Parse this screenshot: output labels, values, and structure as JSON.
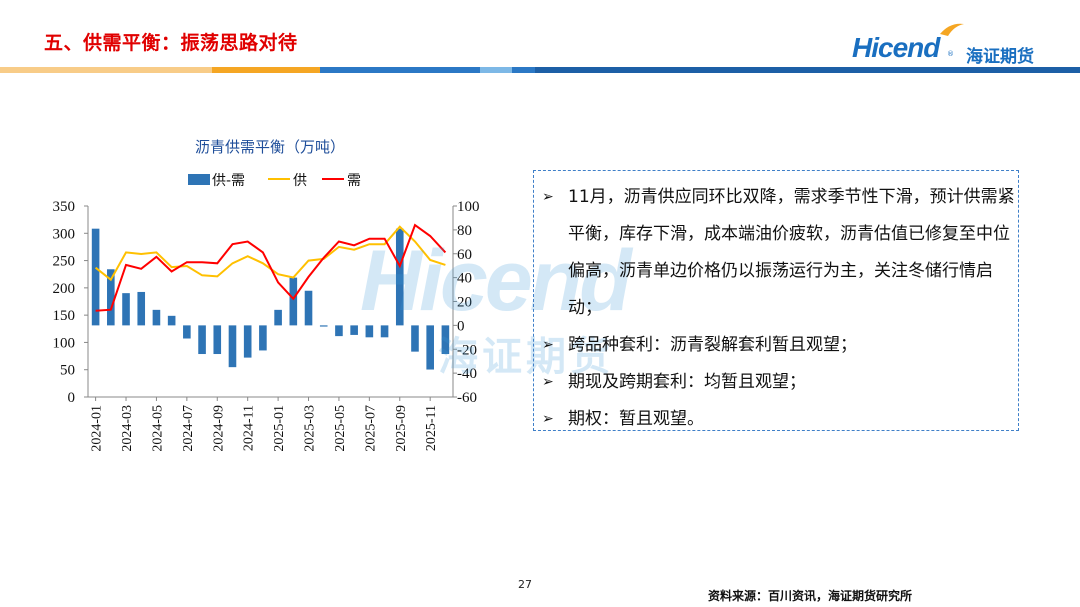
{
  "header": {
    "title": "五、供需平衡：振荡思路对待",
    "logo_text": "Hicend",
    "logo_reg": "®",
    "logo_cn": "海证期货"
  },
  "watermark": {
    "text_en": "Hicend",
    "text_cn": "海证期货"
  },
  "chart_data": {
    "type": "bar+line",
    "title": "沥青供需平衡（万吨）",
    "categories": [
      "2024-01",
      "2024-02",
      "2024-03",
      "2024-04",
      "2024-05",
      "2024-06",
      "2024-07",
      "2024-08",
      "2024-09",
      "2024-10",
      "2024-11",
      "2024-12",
      "2025-01",
      "2025-02",
      "2025-03",
      "2025-04",
      "2025-05",
      "2025-06",
      "2025-07",
      "2025-08",
      "2025-09",
      "2025-10",
      "2025-11",
      "2025-12"
    ],
    "tick_labels": [
      "2024-01",
      "2024-03",
      "2024-05",
      "2024-07",
      "2024-09",
      "2024-11",
      "2025-01",
      "2025-03",
      "2025-05",
      "2025-07",
      "2025-09",
      "2025-11"
    ],
    "left_axis": {
      "min": 0,
      "max": 350,
      "ticks": [
        "0",
        "50",
        "100",
        "150",
        "200",
        "250",
        "300",
        "350"
      ]
    },
    "right_axis": {
      "min": -60,
      "max": 100,
      "ticks": [
        "-60",
        "-40",
        "-20",
        "0",
        "20",
        "40",
        "60",
        "80",
        "100"
      ]
    },
    "legend": {
      "position": "top",
      "labels": [
        "供-需",
        "供",
        "需"
      ]
    },
    "series": [
      {
        "name": "供-需",
        "type": "bar",
        "axis": "right",
        "color": "#2e74b5",
        "values": [
          81,
          47,
          27,
          28,
          13,
          8,
          -11,
          -24,
          -24,
          -35,
          -27,
          -21,
          13,
          40,
          29,
          -1,
          -9,
          -8,
          -10,
          -10,
          81,
          -22,
          -37,
          -24
        ]
      },
      {
        "name": "供",
        "type": "line",
        "axis": "left",
        "color": "#ffc000",
        "values": [
          237,
          215,
          265,
          262,
          265,
          238,
          240,
          223,
          221,
          245,
          258,
          245,
          225,
          219,
          250,
          253,
          275,
          270,
          280,
          280,
          312,
          285,
          251,
          242
        ]
      },
      {
        "name": "需",
        "type": "line",
        "axis": "left",
        "color": "#ff0000",
        "values": [
          158,
          160,
          242,
          235,
          257,
          230,
          247,
          247,
          245,
          280,
          285,
          265,
          210,
          180,
          220,
          255,
          285,
          278,
          290,
          290,
          240,
          315,
          295,
          265
        ]
      }
    ]
  },
  "info": {
    "items": [
      "11月，沥青供应同环比双降，需求季节性下滑，预计供需紧平衡，库存下滑，成本端油价疲软，沥青估值已修复至中位偏高，沥青单边价格仍以振荡运行为主，关注冬储行情启动；",
      "跨品种套利：沥青裂解套利暂且观望；",
      "期现及跨期套利：均暂且观望；",
      "期权：暂且观望。"
    ]
  },
  "footer": {
    "page_number": "27",
    "source": "资料来源：百川资讯，海证期货研究所"
  },
  "colors": {
    "title_red": "#e00000",
    "brand_blue": "#1a6fc0",
    "bar_blue": "#2e74b5",
    "supply_yellow": "#ffc000",
    "demand_red": "#ff0000"
  }
}
